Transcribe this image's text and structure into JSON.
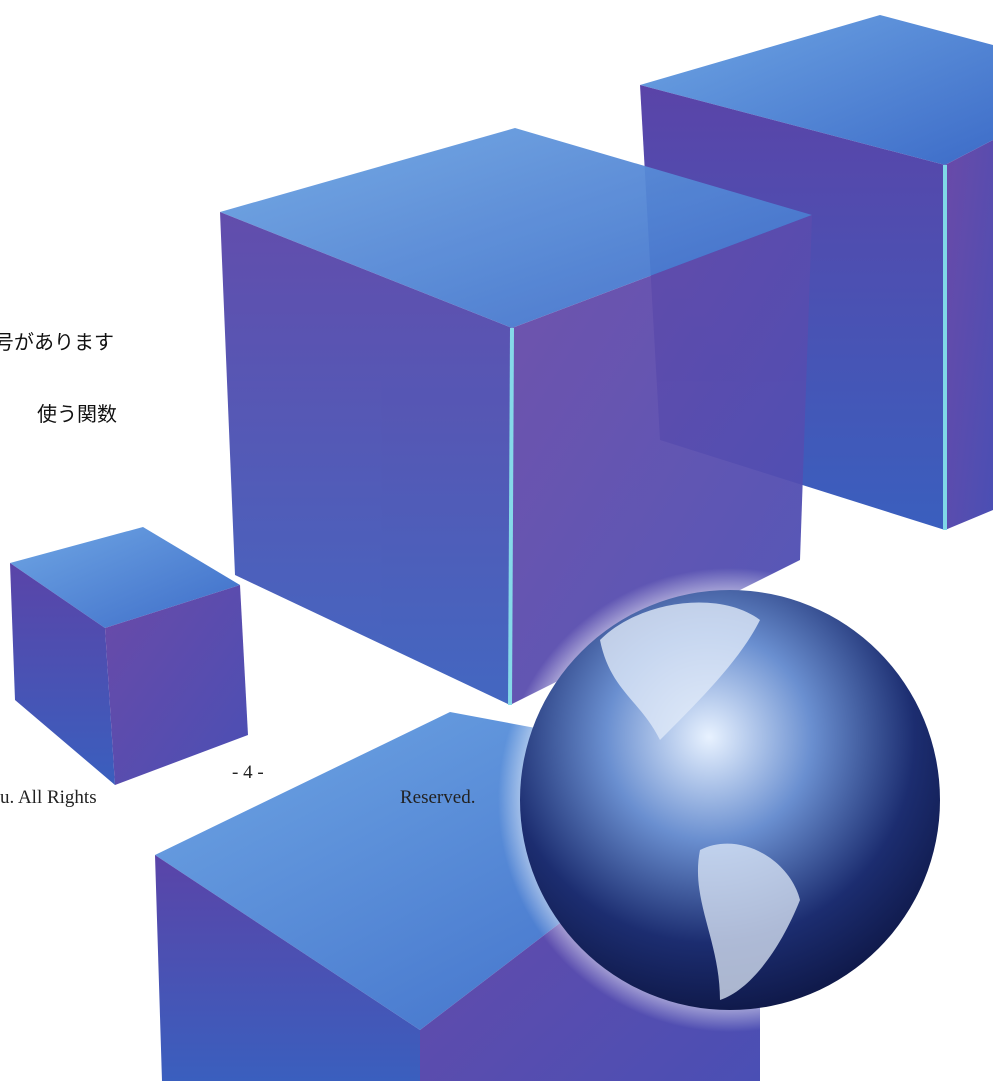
{
  "page": {
    "lines": [
      "号があります",
      "使う関数"
    ],
    "footer": {
      "page_number": "- 4 -",
      "copyright_left": "u. All Rights",
      "copyright_right": "Reserved."
    }
  }
}
